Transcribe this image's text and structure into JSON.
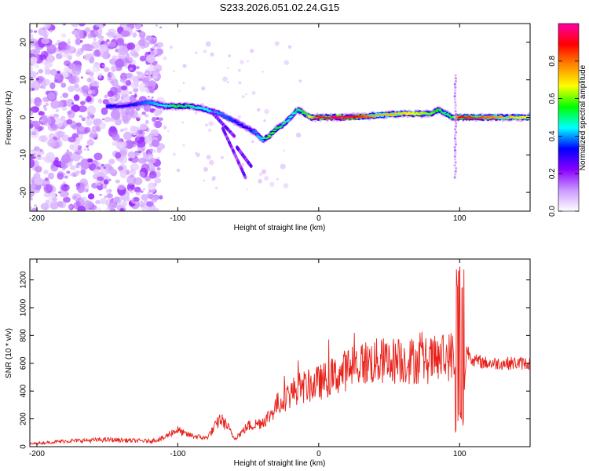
{
  "figure": {
    "title": "S233.2026.051.02.24.G15"
  },
  "chart_data": [
    {
      "type": "heatmap",
      "title": "S233.2026.051.02.24.G15",
      "xlabel": "Height of straight line (km)",
      "ylabel": "Frequency (Hz)",
      "xlim": [
        -205,
        150
      ],
      "ylim": [
        -25,
        25
      ],
      "xticks": [
        -200,
        -100,
        0,
        100
      ],
      "yticks": [
        -20,
        -10,
        0,
        10,
        20
      ],
      "colorbar": {
        "label": "Normalized spectral amplitude",
        "range": [
          0,
          1
        ],
        "ticks": [
          "0.0",
          "0.2",
          "0.4",
          "0.6",
          "0.8"
        ],
        "colors": [
          "#ffffff",
          "#cc99ff",
          "#8800ff",
          "#0000ff",
          "#00ffff",
          "#00ff00",
          "#ffff00",
          "#ff8800",
          "#ff0000",
          "#ff00aa"
        ]
      },
      "ridge": {
        "x": [
          -150,
          -140,
          -120,
          -110,
          -100,
          -90,
          -80,
          -70,
          -60,
          -50,
          -45,
          -40,
          -35,
          -30,
          -25,
          -20,
          -15,
          -10,
          -5,
          0,
          20,
          40,
          60,
          80,
          85,
          90,
          95,
          100,
          150
        ],
        "freq": [
          3,
          3,
          4,
          3,
          3,
          3,
          2,
          1,
          -1,
          -3,
          -4,
          -6,
          -5,
          -3,
          -2,
          0,
          2,
          1,
          0,
          0,
          0,
          0.5,
          1,
          1,
          2,
          1,
          0,
          0,
          0
        ],
        "amplitude": [
          0.35,
          0.3,
          0.4,
          0.45,
          0.55,
          0.5,
          0.45,
          0.4,
          0.35,
          0.3,
          0.4,
          0.45,
          0.6,
          0.55,
          0.5,
          0.45,
          0.5,
          0.55,
          0.7,
          0.95,
          0.95,
          0.75,
          0.7,
          0.6,
          0.55,
          0.5,
          0.55,
          0.9,
          0.65
        ]
      }
    },
    {
      "type": "line",
      "xlabel": "Height of straight line (km)",
      "ylabel": "SNR (10 * v/v)",
      "xlim": [
        -205,
        150
      ],
      "ylim": [
        0,
        1350
      ],
      "xticks": [
        -200,
        -100,
        0,
        100
      ],
      "yticks": [
        0,
        200,
        400,
        600,
        800,
        1000,
        1200
      ],
      "color": "#e8211a",
      "series": [
        {
          "name": "SNR",
          "x": [
            -205,
            -180,
            -150,
            -120,
            -110,
            -105,
            -100,
            -95,
            -90,
            -80,
            -75,
            -70,
            -65,
            -60,
            -55,
            -50,
            -45,
            -40,
            -35,
            -30,
            -25,
            -20,
            -15,
            -10,
            -5,
            0,
            5,
            10,
            15,
            20,
            25,
            30,
            40,
            50,
            60,
            70,
            80,
            85,
            90,
            95,
            98,
            100,
            102,
            105,
            110,
            120,
            130,
            140,
            150
          ],
          "y": [
            20,
            40,
            50,
            40,
            60,
            100,
            120,
            90,
            80,
            60,
            120,
            200,
            150,
            60,
            100,
            150,
            160,
            180,
            220,
            300,
            340,
            380,
            420,
            430,
            440,
            460,
            480,
            500,
            520,
            560,
            580,
            600,
            610,
            620,
            620,
            620,
            620,
            630,
            640,
            660,
            500,
            1100,
            200,
            700,
            620,
            600,
            600,
            600,
            600
          ]
        }
      ]
    }
  ]
}
